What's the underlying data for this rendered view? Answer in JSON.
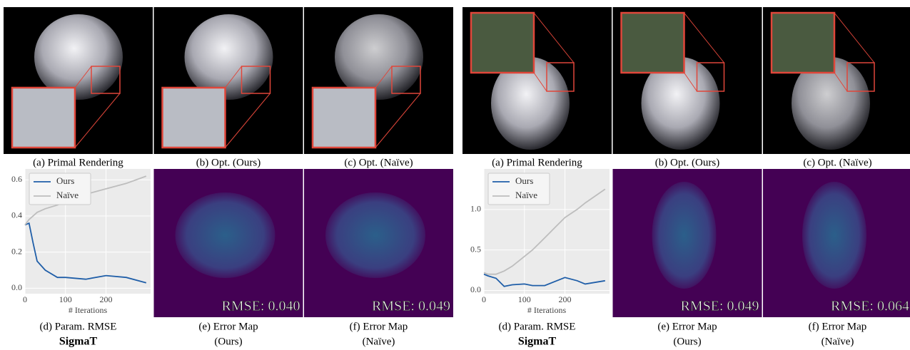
{
  "groups": [
    {
      "captions_top": [
        "(a) Primal Rendering",
        "(b) Opt. (Ours)",
        "(c) Opt. (Naïve)"
      ],
      "chart_caption": "(d) Param. RMSE",
      "label": "SigmaT",
      "error_maps": [
        {
          "rmse": "RMSE: 0.040",
          "caption": [
            "(e) Error Map",
            "(Ours)"
          ]
        },
        {
          "rmse": "RMSE: 0.049",
          "caption": [
            "(f) Error Map",
            "(Naïve)"
          ]
        }
      ]
    },
    {
      "captions_top": [
        "(a) Primal Rendering",
        "(b) Opt. (Ours)",
        "(c) Opt. (Naïve)"
      ],
      "chart_caption": "(d) Param. RMSE",
      "label": "SigmaT",
      "error_maps": [
        {
          "rmse": "RMSE: 0.049",
          "caption": [
            "(e) Error Map",
            "(Ours)"
          ]
        },
        {
          "rmse": "RMSE: 0.064",
          "caption": [
            "(f) Error Map",
            "(Naïve)"
          ]
        }
      ]
    }
  ],
  "chart_data": [
    {
      "type": "line",
      "xlabel": "# Iterations",
      "legend": "upper left",
      "background": "#ebebeb",
      "x": [
        0,
        10,
        20,
        30,
        50,
        80,
        100,
        150,
        200,
        250,
        299
      ],
      "series": [
        {
          "name": "Ours",
          "color": "#1f5ea8",
          "values": [
            0.35,
            0.36,
            0.25,
            0.15,
            0.1,
            0.06,
            0.06,
            0.05,
            0.07,
            0.06,
            0.03
          ]
        },
        {
          "name": "Naïve",
          "color": "#bdbdbd",
          "values": [
            0.35,
            0.38,
            0.4,
            0.42,
            0.44,
            0.46,
            0.48,
            0.52,
            0.55,
            0.58,
            0.62
          ]
        }
      ],
      "xlim": [
        0,
        310
      ],
      "xticks": [
        0,
        100,
        200
      ],
      "ylim": [
        -0.03,
        0.66
      ],
      "yticks": [
        {
          "value": 0,
          "label": "0.0"
        },
        {
          "value": 0.2,
          "label": "0.2"
        },
        {
          "value": 0.4,
          "label": "0.4"
        },
        {
          "value": 0.6,
          "label": "0.6"
        }
      ]
    },
    {
      "type": "line",
      "xlabel": "# Iterations",
      "legend": "upper left",
      "background": "#ebebeb",
      "x": [
        0,
        10,
        30,
        50,
        70,
        100,
        120,
        150,
        180,
        200,
        230,
        250,
        299
      ],
      "series": [
        {
          "name": "Ours",
          "color": "#1f5ea8",
          "values": [
            0.2,
            0.18,
            0.15,
            0.05,
            0.07,
            0.08,
            0.06,
            0.06,
            0.12,
            0.16,
            0.12,
            0.08,
            0.12
          ]
        },
        {
          "name": "Naïve",
          "color": "#bdbdbd",
          "values": [
            0.22,
            0.2,
            0.2,
            0.24,
            0.3,
            0.42,
            0.5,
            0.65,
            0.8,
            0.9,
            1.0,
            1.08,
            1.25
          ]
        }
      ],
      "xlim": [
        0,
        310
      ],
      "xticks": [
        0,
        100,
        200
      ],
      "ylim": [
        -0.04,
        1.5
      ],
      "yticks": [
        {
          "value": 0,
          "label": "0.0"
        },
        {
          "value": 0.5,
          "label": "0.5"
        },
        {
          "value": 1,
          "label": "1.0"
        }
      ]
    }
  ]
}
